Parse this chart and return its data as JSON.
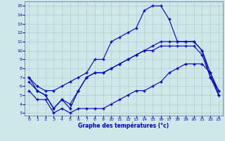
{
  "xlabel": "Graphe des températures (°c)",
  "xlim": [
    -0.5,
    23.5
  ],
  "ylim": [
    2.7,
    15.5
  ],
  "xticks": [
    0,
    1,
    2,
    3,
    4,
    5,
    6,
    7,
    8,
    9,
    10,
    11,
    12,
    13,
    14,
    15,
    16,
    17,
    18,
    19,
    20,
    21,
    22,
    23
  ],
  "yticks": [
    3,
    4,
    5,
    6,
    7,
    8,
    9,
    10,
    11,
    12,
    13,
    14,
    15
  ],
  "bg_color": "#cce8e8",
  "grid_color": "#aacfcf",
  "line_color": "#0000cc",
  "lines": [
    [
      7.0,
      6.0,
      5.5,
      5.5,
      6.0,
      6.5,
      7.0,
      7.5,
      9.0,
      9.0,
      11.0,
      11.5,
      12.0,
      12.5,
      14.5,
      15.0,
      15.0,
      13.5,
      11.0,
      11.0,
      11.0,
      10.0,
      7.5,
      5.5
    ],
    [
      7.0,
      5.5,
      5.0,
      3.5,
      4.5,
      4.0,
      5.5,
      7.0,
      7.5,
      7.5,
      8.0,
      8.5,
      9.0,
      9.5,
      10.0,
      10.5,
      11.0,
      11.0,
      11.0,
      11.0,
      11.0,
      10.0,
      7.0,
      5.5
    ],
    [
      6.5,
      5.5,
      5.0,
      3.5,
      4.5,
      3.5,
      5.5,
      7.0,
      7.5,
      7.5,
      8.0,
      8.5,
      9.0,
      9.5,
      10.0,
      10.0,
      10.5,
      10.5,
      10.5,
      10.5,
      10.5,
      9.5,
      7.0,
      5.0
    ],
    [
      5.5,
      4.5,
      4.5,
      3.0,
      3.5,
      3.0,
      3.5,
      3.5,
      3.5,
      3.5,
      4.0,
      4.5,
      5.0,
      5.5,
      5.5,
      6.0,
      6.5,
      7.5,
      8.0,
      8.5,
      8.5,
      8.5,
      7.5,
      5.0
    ]
  ]
}
